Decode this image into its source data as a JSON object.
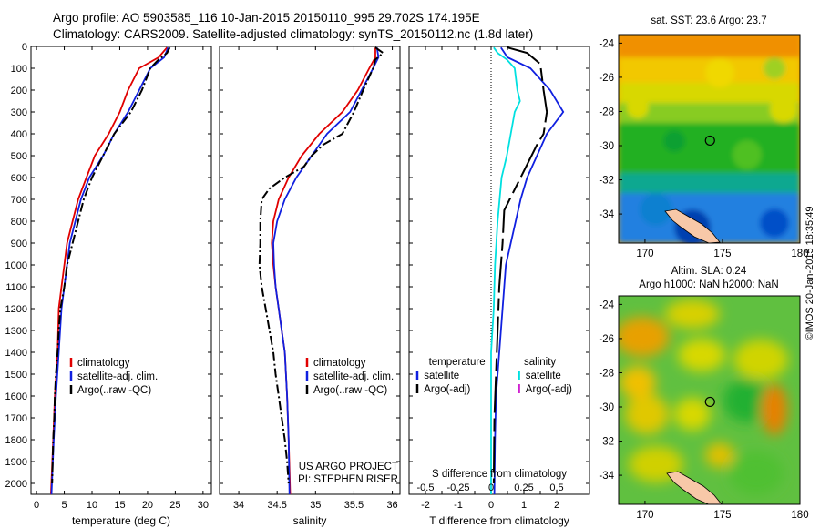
{
  "title_line1": "Argo profile: AO 5903585_116 10-Jan-2015 20150110_995 29.702S 174.195E",
  "title_line2": "Climatology: CARS2009. Satellite-adjusted climatology: synTS_20150112.nc (1.8d later)",
  "credit": "©IMOS 20-Jan-2015 18:35:49",
  "colors": {
    "climatology": "#e00000",
    "satellite": "#1020e0",
    "argo": "#000000",
    "sat_salinity": "#00e0e0",
    "argo_adj_salinity": "#d020d0"
  },
  "chart_data": [
    {
      "type": "line",
      "name": "temperature-profile",
      "xlabel": "temperature (deg C)",
      "ylabel": "",
      "xlim": [
        -1,
        31.5
      ],
      "ylim": [
        2050,
        0
      ],
      "xticks": [
        0,
        5,
        10,
        15,
        20,
        25,
        30
      ],
      "yticks": [
        0,
        100,
        200,
        300,
        400,
        500,
        600,
        700,
        800,
        900,
        1000,
        1100,
        1200,
        1300,
        1400,
        1500,
        1600,
        1700,
        1800,
        1900,
        2000
      ],
      "legend": [
        "climatology",
        "satellite-adj. clim.",
        "Argo(..raw -QC)"
      ],
      "series": [
        {
          "name": "climatology",
          "points": [
            [
              23.5,
              5
            ],
            [
              22,
              50
            ],
            [
              18.5,
              100
            ],
            [
              16.5,
              200
            ],
            [
              15,
              300
            ],
            [
              13,
              400
            ],
            [
              10.5,
              500
            ],
            [
              9,
              600
            ],
            [
              7.5,
              700
            ],
            [
              6.5,
              800
            ],
            [
              5.5,
              900
            ],
            [
              5,
              1000
            ],
            [
              4.5,
              1100
            ],
            [
              4,
              1200
            ],
            [
              3.8,
              1400
            ],
            [
              3.3,
              1600
            ],
            [
              3,
              1800
            ],
            [
              2.6,
              2050
            ]
          ]
        },
        {
          "name": "satellite-adj. clim.",
          "points": [
            [
              23.7,
              5
            ],
            [
              23,
              50
            ],
            [
              20.5,
              100
            ],
            [
              18.5,
              200
            ],
            [
              16.5,
              300
            ],
            [
              14,
              400
            ],
            [
              12,
              500
            ],
            [
              9.5,
              600
            ],
            [
              8,
              700
            ],
            [
              7,
              800
            ],
            [
              6,
              900
            ],
            [
              5.5,
              1000
            ],
            [
              5,
              1100
            ],
            [
              4.5,
              1200
            ],
            [
              4,
              1400
            ],
            [
              3.5,
              1600
            ],
            [
              3.1,
              1800
            ],
            [
              2.7,
              2050
            ]
          ]
        },
        {
          "name": "Argo(..raw -QC)",
          "points": [
            [
              24,
              5
            ],
            [
              23.5,
              30
            ],
            [
              22,
              60
            ],
            [
              20.5,
              100
            ],
            [
              19,
              200
            ],
            [
              17,
              300
            ],
            [
              14,
              400
            ],
            [
              12,
              500
            ],
            [
              10,
              600
            ],
            [
              8.5,
              700
            ],
            [
              7.5,
              800
            ],
            [
              6.5,
              900
            ],
            [
              5.5,
              1000
            ],
            [
              5,
              1100
            ],
            [
              4.3,
              1200
            ],
            [
              4,
              1300
            ],
            [
              3.8,
              1400
            ],
            [
              3.5,
              1500
            ],
            [
              3.3,
              1600
            ],
            [
              3.2,
              1700
            ],
            [
              3,
              1800
            ],
            [
              2.9,
              1900
            ],
            [
              2.8,
              2000
            ]
          ]
        }
      ]
    },
    {
      "type": "line",
      "name": "salinity-profile",
      "xlabel": "salinity",
      "ylabel": "",
      "xlim": [
        33.75,
        36.1
      ],
      "ylim": [
        2050,
        0
      ],
      "xticks": [
        34,
        34.5,
        35,
        35.5,
        36
      ],
      "legend": [
        "climatology",
        "satellite-adj. clim.",
        "Argo(..raw -QC)"
      ],
      "annotation": [
        "US ARGO PROJECT",
        "PI: STEPHEN RISER"
      ],
      "series": [
        {
          "name": "climatology",
          "points": [
            [
              35.78,
              5
            ],
            [
              35.78,
              50
            ],
            [
              35.7,
              100
            ],
            [
              35.55,
              200
            ],
            [
              35.35,
              300
            ],
            [
              35.05,
              400
            ],
            [
              34.82,
              500
            ],
            [
              34.65,
              600
            ],
            [
              34.52,
              700
            ],
            [
              34.45,
              800
            ],
            [
              34.43,
              900
            ],
            [
              34.45,
              1000
            ],
            [
              34.48,
              1100
            ],
            [
              34.52,
              1200
            ],
            [
              34.56,
              1300
            ],
            [
              34.6,
              1400
            ],
            [
              34.63,
              1600
            ],
            [
              34.65,
              1800
            ],
            [
              34.67,
              2050
            ]
          ]
        },
        {
          "name": "satellite-adj. clim.",
          "points": [
            [
              35.8,
              5
            ],
            [
              35.82,
              50
            ],
            [
              35.75,
              100
            ],
            [
              35.6,
              200
            ],
            [
              35.45,
              300
            ],
            [
              35.15,
              400
            ],
            [
              34.95,
              500
            ],
            [
              34.75,
              600
            ],
            [
              34.6,
              700
            ],
            [
              34.5,
              800
            ],
            [
              34.45,
              900
            ],
            [
              34.46,
              1000
            ],
            [
              34.48,
              1100
            ],
            [
              34.52,
              1200
            ],
            [
              34.56,
              1300
            ],
            [
              34.6,
              1400
            ],
            [
              34.63,
              1600
            ],
            [
              34.65,
              1800
            ],
            [
              34.66,
              2050
            ]
          ]
        },
        {
          "name": "Argo(..raw -QC)",
          "points": [
            [
              35.78,
              5
            ],
            [
              35.88,
              30
            ],
            [
              35.78,
              60
            ],
            [
              35.75,
              100
            ],
            [
              35.62,
              200
            ],
            [
              35.5,
              300
            ],
            [
              35.35,
              400
            ],
            [
              35.1,
              450
            ],
            [
              34.95,
              500
            ],
            [
              34.85,
              550
            ],
            [
              34.6,
              600
            ],
            [
              34.4,
              650
            ],
            [
              34.3,
              700
            ],
            [
              34.28,
              800
            ],
            [
              34.28,
              900
            ],
            [
              34.27,
              1000
            ],
            [
              34.3,
              1100
            ],
            [
              34.35,
              1200
            ],
            [
              34.4,
              1300
            ],
            [
              34.45,
              1400
            ],
            [
              34.48,
              1500
            ],
            [
              34.52,
              1600
            ],
            [
              34.56,
              1700
            ],
            [
              34.6,
              1800
            ],
            [
              34.63,
              1900
            ],
            [
              34.65,
              2000
            ]
          ]
        }
      ]
    },
    {
      "type": "line",
      "name": "difference-profile",
      "xlabel": "T difference from climatology",
      "xlabel_top": "S difference from climatology",
      "xlim": [
        -2.5,
        3
      ],
      "ylim": [
        2050,
        0
      ],
      "xticks": [
        -2,
        -1.5,
        -1,
        -0.5,
        0,
        0.5,
        1,
        1.5,
        2
      ],
      "xtick_labels": [
        "-2",
        "",
        "-1",
        "",
        "0",
        "",
        "1",
        "",
        "2"
      ],
      "s_ticks": [
        -0.5,
        -0.25,
        0,
        0.25,
        0.5
      ],
      "s_tick_labels": [
        "-0.5",
        "-0.25",
        "0",
        "0.25",
        "0.5"
      ],
      "legend": {
        "temperature_header": "temperature",
        "salinity_header": "salinity",
        "temperature": [
          "satellite",
          "Argo(-adj)"
        ],
        "salinity": [
          "satellite",
          "Argo(-adj)"
        ]
      },
      "series": [
        {
          "name": "temperature satellite",
          "points": [
            [
              0.3,
              5
            ],
            [
              0.5,
              50
            ],
            [
              1.2,
              100
            ],
            [
              1.8,
              200
            ],
            [
              2.2,
              300
            ],
            [
              1.7,
              400
            ],
            [
              1.4,
              500
            ],
            [
              1.1,
              600
            ],
            [
              0.9,
              700
            ],
            [
              0.75,
              800
            ],
            [
              0.6,
              900
            ],
            [
              0.45,
              1000
            ],
            [
              0.35,
              1200
            ],
            [
              0.25,
              1400
            ],
            [
              0.15,
              1600
            ],
            [
              0.12,
              1800
            ],
            [
              0.1,
              2050
            ]
          ]
        },
        {
          "name": "temperature Argo(-adj)",
          "points": [
            [
              0.5,
              5
            ],
            [
              1.1,
              30
            ],
            [
              1.5,
              80
            ],
            [
              1.6,
              200
            ],
            [
              1.7,
              300
            ],
            [
              1.6,
              400
            ],
            [
              1.4,
              450
            ],
            [
              0.4,
              750
            ],
            [
              0.35,
              900
            ],
            [
              0.25,
              1100
            ],
            [
              0.2,
              1300
            ],
            [
              0.15,
              1500
            ],
            [
              0.1,
              1700
            ],
            [
              0.08,
              2000
            ]
          ]
        },
        {
          "name": "salinity satellite",
          "points": [
            [
              0.02,
              5
            ],
            [
              0.05,
              30
            ],
            [
              0.12,
              60
            ],
            [
              0.18,
              100
            ],
            [
              0.2,
              200
            ],
            [
              0.22,
              250
            ],
            [
              0.18,
              300
            ],
            [
              0.15,
              400
            ],
            [
              0.12,
              500
            ],
            [
              0.08,
              600
            ],
            [
              0.05,
              800
            ],
            [
              0.03,
              1000
            ],
            [
              0.02,
              1200
            ],
            [
              0.0,
              1400
            ],
            [
              0.0,
              1600
            ],
            [
              0.0,
              2050
            ]
          ]
        },
        {
          "name": "salinity Argo(-adj)",
          "points": []
        }
      ]
    },
    {
      "type": "heatmap",
      "name": "sst-map",
      "title": "sat. SST: 23.6  Argo: 23.7",
      "xlim": [
        168.3,
        180
      ],
      "ylim": [
        -35.7,
        -23.5
      ],
      "xticks": [
        170,
        175,
        180
      ],
      "yticks": [
        -24,
        -26,
        -28,
        -30,
        -32,
        -34
      ],
      "marker": {
        "lon": 174.195,
        "lat": -29.702
      }
    },
    {
      "type": "heatmap",
      "name": "sla-map",
      "title_line1": "Altim. SLA: 0.24",
      "title_line2": "Argo h1000: NaN  h2000: NaN",
      "xlim": [
        168.3,
        180
      ],
      "ylim": [
        -35.7,
        -23.5
      ],
      "xticks": [
        170,
        175,
        180
      ],
      "yticks": [
        -24,
        -26,
        -28,
        -30,
        -32,
        -34
      ],
      "marker": {
        "lon": 174.195,
        "lat": -29.702
      }
    }
  ]
}
